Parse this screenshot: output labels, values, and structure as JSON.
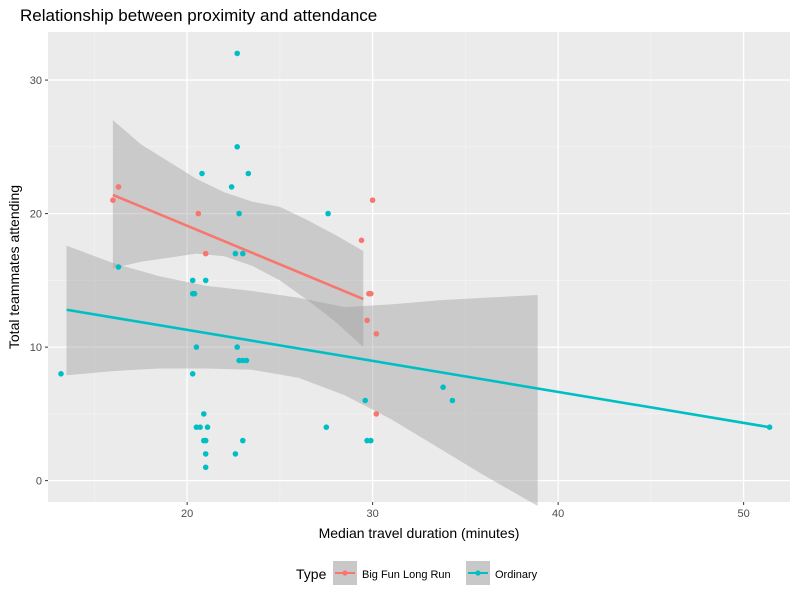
{
  "chart_data": {
    "type": "scatter",
    "title": "Relationship between proximity and attendance",
    "xlabel": "Median travel duration (minutes)",
    "ylabel": "Total teammates attending",
    "xlim": [
      12.5,
      52.5
    ],
    "ylim": [
      -1.6,
      33.6
    ],
    "x_ticks": [
      20,
      30,
      40,
      50
    ],
    "y_ticks": [
      0,
      10,
      20,
      30
    ],
    "grid": true,
    "legend": {
      "title": "Type",
      "position": "bottom",
      "entries": [
        "Big Fun Long Run",
        "Ordinary"
      ]
    },
    "series": [
      {
        "name": "Big Fun Long Run",
        "color": "#F8766D",
        "points": [
          [
            16.0,
            21
          ],
          [
            16.3,
            22
          ],
          [
            20.6,
            20
          ],
          [
            21.0,
            17
          ],
          [
            29.4,
            18
          ],
          [
            29.8,
            14
          ],
          [
            29.9,
            14
          ],
          [
            30.0,
            21
          ],
          [
            29.7,
            12
          ],
          [
            30.2,
            11
          ],
          [
            30.2,
            5
          ]
        ],
        "fit": {
          "x": [
            16.0,
            17.5,
            19.0,
            20.5,
            22.0,
            23.5,
            25.0,
            26.5,
            28.0,
            29.5
          ],
          "y": [
            21.4,
            20.82,
            20.24,
            19.66,
            19.08,
            18.5,
            17.92,
            17.34,
            16.76,
            13.6
          ],
          "lower": [
            15.9,
            16.4,
            16.7,
            17.0,
            16.8,
            16.1,
            15.0,
            13.5,
            11.9,
            10.0
          ],
          "upper": [
            27.0,
            25.2,
            23.9,
            22.6,
            21.6,
            20.9,
            20.5,
            19.5,
            18.4,
            17.2
          ]
        }
      },
      {
        "name": "Ordinary",
        "color": "#00BFC4",
        "points": [
          [
            13.2,
            8
          ],
          [
            16.3,
            16
          ],
          [
            20.3,
            15
          ],
          [
            20.3,
            14
          ],
          [
            20.4,
            14
          ],
          [
            20.3,
            8
          ],
          [
            20.5,
            10
          ],
          [
            20.5,
            4
          ],
          [
            20.7,
            4
          ],
          [
            20.9,
            5
          ],
          [
            20.9,
            3
          ],
          [
            21.0,
            3
          ],
          [
            21.1,
            4
          ],
          [
            21.0,
            15
          ],
          [
            21.0,
            2
          ],
          [
            21.0,
            1
          ],
          [
            20.8,
            23
          ],
          [
            22.4,
            22
          ],
          [
            22.7,
            32
          ],
          [
            22.7,
            25
          ],
          [
            22.8,
            20
          ],
          [
            22.6,
            17
          ],
          [
            23.0,
            17
          ],
          [
            23.3,
            23
          ],
          [
            22.7,
            10
          ],
          [
            22.8,
            9
          ],
          [
            23.0,
            9
          ],
          [
            23.2,
            9
          ],
          [
            22.6,
            2
          ],
          [
            23.0,
            3
          ],
          [
            27.6,
            20
          ],
          [
            27.5,
            4
          ],
          [
            29.6,
            6
          ],
          [
            29.7,
            3
          ],
          [
            29.9,
            3
          ],
          [
            33.8,
            7
          ],
          [
            34.3,
            6
          ],
          [
            51.4,
            4
          ]
        ],
        "fit": {
          "x": [
            13.5,
            16.0,
            18.5,
            21.0,
            23.5,
            26.0,
            28.5,
            31.0,
            33.5,
            36.0,
            38.9
          ],
          "y": [
            12.8,
            12.37,
            11.93,
            11.5,
            11.07,
            10.63,
            10.2,
            9.77,
            9.33,
            8.9,
            8.4
          ],
          "lower": [
            7.9,
            8.2,
            8.4,
            8.4,
            8.3,
            7.7,
            6.4,
            4.6,
            2.5,
            0.4,
            -1.9
          ],
          "upper": [
            17.6,
            16.3,
            15.3,
            14.6,
            14.2,
            13.7,
            13.0,
            13.2,
            13.5,
            13.7,
            13.9
          ]
        },
        "fit_line_end": [
          51.4,
          4.0
        ]
      }
    ]
  }
}
